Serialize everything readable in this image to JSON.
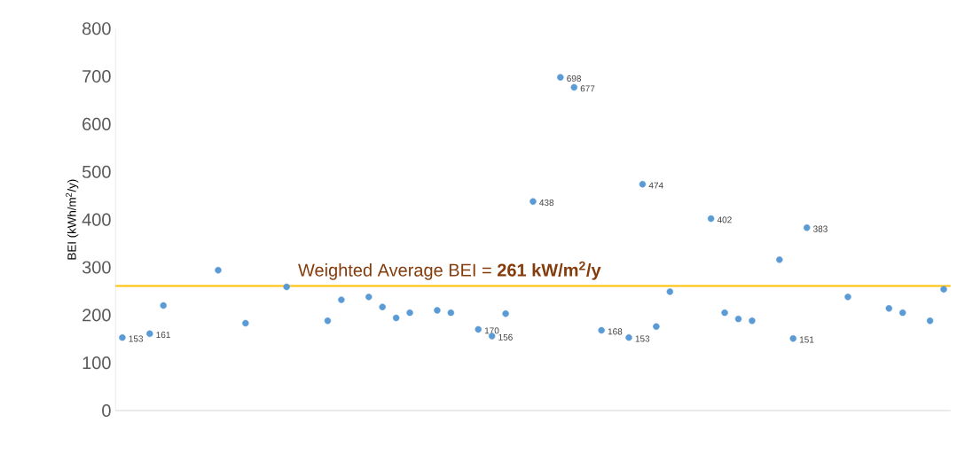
{
  "chart_data": {
    "type": "scatter",
    "ylabel": "BEI (kWh/m$^{2}$/y)",
    "categories": [
      null,
      null,
      null,
      null,
      null,
      null,
      null,
      null,
      null,
      null,
      null,
      null,
      null,
      null,
      null,
      null,
      null,
      null,
      null,
      null,
      null,
      null,
      null,
      null,
      null,
      null,
      null,
      null,
      null,
      null,
      null,
      null,
      null,
      null,
      null,
      null,
      null,
      null,
      null,
      null,
      null,
      null,
      null,
      null,
      null,
      null,
      null,
      null,
      null,
      null,
      null,
      null,
      null,
      null,
      null,
      null,
      null,
      null,
      null,
      null,
      null
    ],
    "values": [
      153,
      null,
      161,
      220,
      null,
      null,
      null,
      294,
      null,
      183,
      null,
      null,
      259,
      null,
      null,
      188,
      232,
      null,
      238,
      217,
      194,
      205,
      null,
      210,
      205,
      null,
      170,
      156,
      203,
      null,
      438,
      null,
      698,
      677,
      null,
      168,
      null,
      153,
      474,
      176,
      249,
      null,
      null,
      402,
      205,
      192,
      188,
      null,
      316,
      151,
      383,
      null,
      null,
      238,
      null,
      null,
      214,
      205,
      null,
      188,
      254
    ],
    "value_labels": [
      "153",
      null,
      "161",
      null,
      null,
      null,
      null,
      null,
      null,
      null,
      null,
      null,
      null,
      null,
      null,
      null,
      null,
      null,
      null,
      null,
      null,
      null,
      null,
      null,
      null,
      null,
      "170",
      "156",
      null,
      null,
      "438",
      null,
      "698",
      "677",
      null,
      "168",
      null,
      "153",
      "474",
      null,
      null,
      null,
      null,
      "402",
      null,
      null,
      null,
      null,
      null,
      "151",
      "383",
      null,
      null,
      null,
      null,
      null,
      null,
      null,
      null,
      null,
      null
    ],
    "color": "#5b9bd5",
    "marker": "circle",
    "ylim": [
      0,
      800
    ],
    "yticks": [
      0,
      100,
      200,
      300,
      400,
      500,
      600,
      700,
      800
    ],
    "grid": false,
    "ref_lines": [
      {
        "axis": "y",
        "value": 261,
        "label": "Weighted Average BEI = **261 kW/m$^{2}$/y**",
        "color": "#ffc000"
      }
    ]
  }
}
